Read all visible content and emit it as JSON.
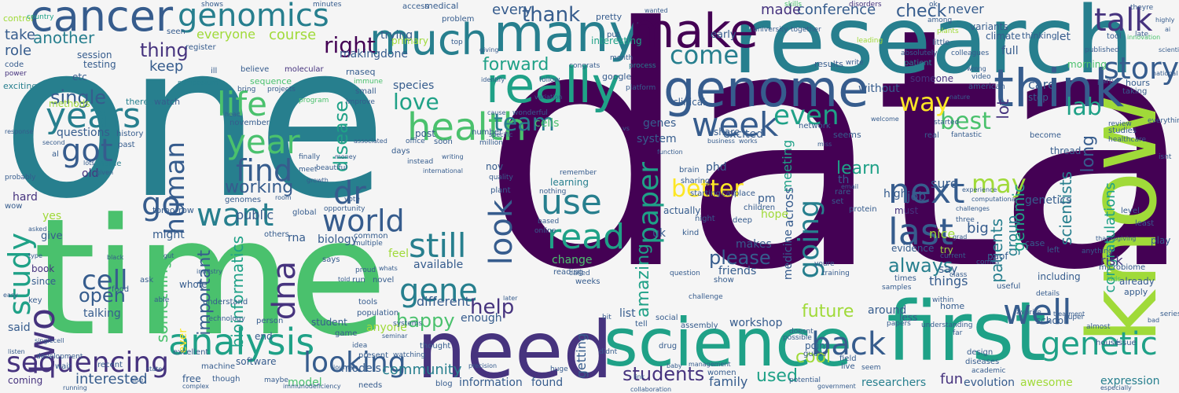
{
  "palette": {
    "background": "#f5f5f5",
    "c0": "#440154",
    "c1": "#46337e",
    "c2": "#365c8d",
    "c3": "#277f8e",
    "c4": "#1fa187",
    "c5": "#4ac16d",
    "c6": "#a0da39",
    "c7": "#fde725"
  },
  "words": {
    "data": "data",
    "one": "one",
    "time": "time",
    "research": "research",
    "science": "science",
    "first": "first",
    "need": "need",
    "know": "know",
    "many": "many",
    "genome": "genome",
    "make": "make",
    "think": "think",
    "cancer": "cancer",
    "genomics": "genomics",
    "much": "much",
    "really": "really",
    "analysis": "analysis",
    "sequencing": "sequencing",
    "health": "health",
    "years": "years",
    "year": "year",
    "got": "got",
    "life": "life",
    "two": "two",
    "study": "study",
    "dna": "dna",
    "week": "week",
    "talk": "talk",
    "story": "story",
    "next": "next",
    "last": "last",
    "well": "well",
    "back": "back",
    "genetic": "genetic",
    "paper": "paper",
    "use": "use",
    "read": "read",
    "look": "look",
    "still": "still",
    "gene": "gene",
    "going": "going",
    "world": "world",
    "human": "human",
    "want": "want",
    "find": "find",
    "dr": "dr",
    "go": "go",
    "cell": "cell",
    "looking": "looking",
    "open": "open",
    "team": "team",
    "love": "love",
    "better": "better",
    "best": "best",
    "lab": "lab",
    "way": "way",
    "even": "even",
    "come": "come",
    "right": "right",
    "another": "another",
    "thing": "thing",
    "thank": "thank",
    "forward": "forward",
    "may": "may",
    "please": "please",
    "help": "help",
    "students": "students",
    "learn": "learn",
    "future": "future",
    "happy": "happy",
    "always": "always",
    "bioinformatics": "bioinformatics",
    "important": "important",
    "something": "something",
    "working": "working",
    "disease": "disease",
    "conference": "conference",
    "made": "made",
    "check": "check",
    "every": "every",
    "course": "course",
    "everyone": "everyone",
    "keep": "keep",
    "take": "take",
    "role": "role",
    "control": "control",
    "single": "single",
    "methods": "methods",
    "exciting": "exciting",
    "history": "history",
    "questions": "questions",
    "old": "old",
    "name": "name",
    "hard": "hard",
    "yes": "yes",
    "give": "give",
    "book": "book",
    "since": "since",
    "said": "said",
    "coming": "coming",
    "interested": "interested",
    "community": "community",
    "information": "information",
    "found": "found",
    "family": "family",
    "used": "used",
    "cool": "cool",
    "fun": "fun",
    "researchers": "researchers",
    "evolution": "evolution",
    "awesome": "awesome",
    "expression": "expression",
    "school": "school",
    "congratulations": "congratulations",
    "patients": "patients",
    "group": "group",
    "genomic": "genomic",
    "scientists": "scientists",
    "long": "long",
    "care": "care",
    "stop": "stop",
    "full": "full",
    "lot": "lot",
    "never": "never",
    "sure": "sure",
    "job": "job",
    "high": "high",
    "nice": "nice",
    "big": "big",
    "genetics": "genetics",
    "must": "must",
    "try": "try",
    "evidence": "evidence",
    "without": "without",
    "someone": "someone",
    "system": "system",
    "genes": "genes",
    "phd": "phd",
    "meeting": "meeting",
    "across": "across",
    "medicine": "medicine",
    "workshop": "workshop",
    "amazing": "amazing",
    "uk": "uk",
    "actually": "actually",
    "makes": "makes",
    "friends": "friends",
    "learning": "learning",
    "change": "change",
    "available": "available",
    "different": "different",
    "public": "public",
    "rna": "rna",
    "might": "might",
    "biology": "biology",
    "enough": "enough",
    "getting": "getting",
    "anyone": "anyone",
    "feel": "feel",
    "ever": "ever",
    "talking": "talking",
    "model": "model",
    "models": "models",
    "free": "free",
    "end": "end",
    "software": "software",
    "say": "say",
    "things": "things",
    "around": "around",
    "less": "less",
    "pm": "pm",
    "hope": "hope",
    "excited": "excited",
    "share": "share",
    "clinical": "clinical",
    "interesting": "interesting",
    "trying": "trying",
    "making": "making",
    "done": "done",
    "primary": "primary",
    "testing": "testing",
    "session": "session",
    "etc": "etc",
    "th": "th",
    "risk": "risk",
    "cells": "cells",
    "species": "species",
    "morning": "morning",
    "let": "let",
    "diversity": "diversity",
    "based": "based",
    "join": "join",
    "article": "article",
    "early": "early",
    "access": "access",
    "medical": "medical",
    "pretty": "pretty",
    "put": "put",
    "tweet": "tweet",
    "list": "list",
    "point": "point",
    "student": "student",
    "nov": "nov",
    "yet": "yet",
    "climate": "climate",
    "thinking": "thinking",
    "variants": "variants",
    "skills": "skills",
    "disorders": "disorders",
    "ok": "ok",
    "published": "published",
    "tool": "tool",
    "hours": "hours",
    "taking": "taking",
    "women": "women",
    "including": "including",
    "already": "already",
    "apply": "apply",
    "microbiome": "microbiome",
    "case": "case",
    "left": "left",
    "thread": "thread",
    "studies": "studies",
    "review": "review",
    "play": "play",
    "level": "level",
    "least": "least",
    "seems": "seems",
    "network": "network",
    "rare": "rare",
    "set": "set",
    "protein": "protein",
    "call": "call",
    "place": "place",
    "starting": "starting",
    "brain": "brain",
    "sharing": "sharing",
    "children": "children",
    "night": "night",
    "kind": "kind",
    "deep": "deep",
    "show": "show",
    "question": "question",
    "social": "social",
    "assembly": "assembly",
    "drug": "drug",
    "tell": "tell",
    "bit": "bit",
    "online": "online",
    "watching": "watching",
    "thought": "thought",
    "needs": "needs",
    "blog": "blog",
    "seminar": "seminar",
    "game": "game",
    "idea": "idea",
    "present": "present",
    "systems": "systems",
    "tools": "tools",
    "population": "population",
    "run": "run",
    "novel": "novel",
    "says": "says",
    "proud": "proud",
    "common": "common",
    "multiple": "multiple",
    "others": "others",
    "global": "global",
    "vote": "vote",
    "opportunity": "opportunity",
    "tomorrow": "tomorrow",
    "genomes": "genomes",
    "november": "november",
    "ask": "ask",
    "whole": "whole",
    "food": "food",
    "understand": "understand",
    "person": "person",
    "technology": "technology",
    "industry": "industry",
    "able": "able",
    "maybe": "maybe",
    "though": "though",
    "machine": "machine",
    "excellent": "excellent",
    "recent": "recent",
    "wait": "wait",
    "development": "development",
    "complex": "complex",
    "key": "key",
    "wow": "wow",
    "al": "al",
    "past": "past",
    "lots": "lots",
    "given": "given",
    "meet": "meet",
    "finally": "finally",
    "beautiful": "beautiful",
    "post": "post",
    "days": "days",
    "number": "number",
    "soon": "soon",
    "office": "office",
    "plant": "plant",
    "quality": "quality",
    "remember": "remember",
    "nothing": "nothing",
    "instead": "instead",
    "international": "international",
    "writing": "writing",
    "million": "million",
    "specific": "specific",
    "wonderful": "wonderful",
    "sequence": "sequence",
    "theres": "theres",
    "watch": "watch",
    "symposium": "symposium",
    "register": "register",
    "seen": "seen",
    "code": "code",
    "power": "power",
    "country": "country",
    "ill": "ill",
    "believe": "believe",
    "molecular": "molecular",
    "bring": "bring",
    "projects": "projects",
    "program": "program",
    "rnaseq": "rnaseq",
    "immune": "immune",
    "small": "small",
    "improve": "improve",
    "shows": "shows",
    "minutes": "minutes",
    "problem": "problem",
    "google": "google",
    "month": "month",
    "process": "process",
    "platform": "platform",
    "university": "university",
    "together": "together",
    "results": "results",
    "write": "write",
    "absolutely": "absolutely",
    "patient": "patient",
    "american": "american",
    "nature": "nature",
    "wrong": "wrong",
    "video": "video",
    "fantastic": "fantastic",
    "started": "started",
    "real": "real",
    "welcome": "welcome",
    "become": "become",
    "healthcare": "healthcare",
    "everything": "everything",
    "isnt": "isnt",
    "national": "national",
    "scientific": "scientific",
    "innovation": "innovation",
    "late": "late",
    "theyre": "theyre",
    "among": "among",
    "plants": "plants",
    "little": "little",
    "colleagues": "colleagues",
    "leading": "leading",
    "youre": "youre",
    "training": "training",
    "doesnt": "doesnt",
    "possible": "possible",
    "guess": "guess",
    "field": "field",
    "live": "live",
    "seem": "seem",
    "potential": "potential",
    "government": "government",
    "design": "design",
    "diseases": "diseases",
    "academic": "academic",
    "house": "house",
    "issue": "issue",
    "especially": "especially",
    "series": "series",
    "almost": "almost",
    "super": "super",
    "favorite": "favorite",
    "treatment": "treatment",
    "details": "details",
    "useful": "useful",
    "class": "class",
    "comes": "comes",
    "home": "home",
    "within": "within",
    "understanding": "understanding",
    "papers": "papers",
    "far": "far",
    "current": "current",
    "times": "times",
    "samples": "samples",
    "challenge": "challenge",
    "collaboration": "collaboration",
    "link": "link",
    "women2": "women",
    "huge": "huge",
    "didnt": "didnt",
    "called": "called",
    "weeks": "weeks",
    "reading": "reading",
    "white": "white",
    "whats": "whats",
    "told": "told",
    "journal": "journal",
    "gut": "gut",
    "black": "black",
    "type": "type",
    "asked": "asked",
    "listen": "listen",
    "singlecell": "singlecell",
    "easy": "easy",
    "state": "state",
    "else": "else",
    "running": "running",
    "immunodeficiency": "immunodeficiency",
    "response": "response",
    "second": "second",
    "probably": "probably",
    "room": "room",
    "money": "money",
    "growth": "growth",
    "associated": "associated",
    "head": "head",
    "giving": "giving",
    "identify": "identify",
    "variation": "variation",
    "cause": "cause",
    "wanted": "wanted",
    "function": "function",
    "business": "business",
    "works": "works",
    "miss": "miss",
    "challenges": "challenges",
    "three": "three",
    "experience": "experience",
    "computational": "computational",
    "thanksgiving": "thanksgiving",
    "kids": "kids",
    "anything": "anything",
    "bad": "bad",
    "email": "email",
    "paof": "paof",
    "congrats": "congrats",
    "follow": "follow",
    "highly": "highly",
    "ai": "ai",
    "baby": "baby",
    "management": "management",
    "precision": "precision",
    "later": "later",
    "vs": "vs",
    "grad": "grad",
    "top": "top",
    "party": "party"
  }
}
